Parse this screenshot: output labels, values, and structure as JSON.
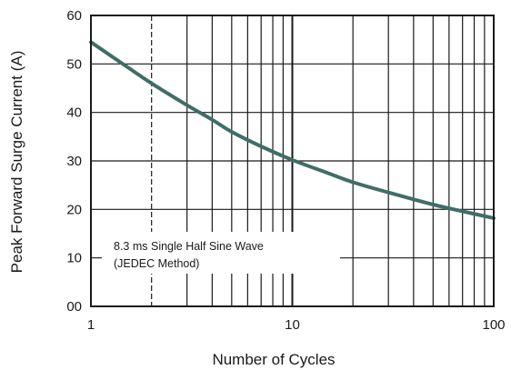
{
  "chart_data": {
    "type": "line",
    "title": "",
    "xlabel": "Number of Cycles",
    "ylabel": "Peak Forward Surge Current (A)",
    "x_scale": "log",
    "xlim": [
      1,
      100
    ],
    "ylim": [
      0,
      60
    ],
    "x_ticks": [
      1,
      10,
      100
    ],
    "x_tick_labels": [
      "1",
      "10",
      "100"
    ],
    "y_ticks": [
      0,
      10,
      20,
      30,
      40,
      50,
      60
    ],
    "y_tick_labels": [
      "00",
      "10",
      "20",
      "30",
      "40",
      "50",
      "60"
    ],
    "grid": true,
    "annotation": [
      "8.3 ms Single Half Sine Wave",
      "(JEDEC Method)"
    ],
    "line_color": "#3f6e66",
    "series": [
      {
        "name": "",
        "x": [
          1,
          1.5,
          2,
          3,
          4,
          5,
          7,
          10,
          15,
          20,
          30,
          50,
          70,
          100
        ],
        "y": [
          54.5,
          49.5,
          46.0,
          41.5,
          38.5,
          36.0,
          33.0,
          30.2,
          27.5,
          25.6,
          23.5,
          21.0,
          19.6,
          18.2
        ]
      }
    ]
  }
}
